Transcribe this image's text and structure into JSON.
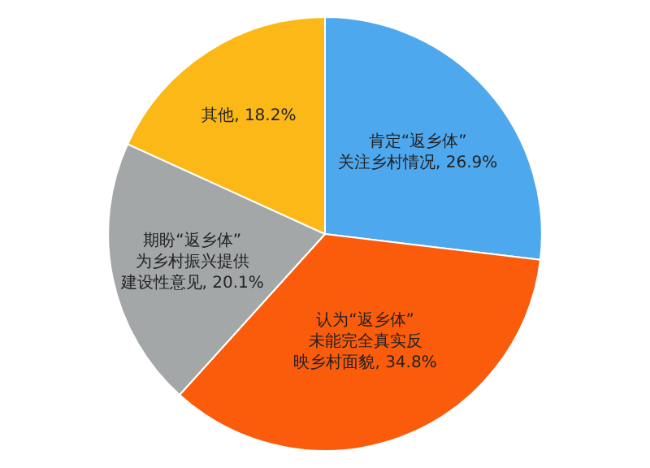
{
  "chart_data": {
    "type": "pie",
    "categories": [
      "肯定“返乡体”关注乡村情况",
      "认为“返乡体”未能完全真实反映乡村面貌",
      "期盼“返乡体”为乡村振兴提供建设性意见",
      "其他"
    ],
    "values": [
      26.9,
      34.8,
      20.1,
      18.2
    ],
    "value_labels": [
      "26.9%",
      "34.8%",
      "20.1%",
      "18.2%"
    ],
    "colors": [
      "#4ea8ee",
      "#fa5c0c",
      "#a3a7a7",
      "#fbb816"
    ],
    "legend": false
  }
}
